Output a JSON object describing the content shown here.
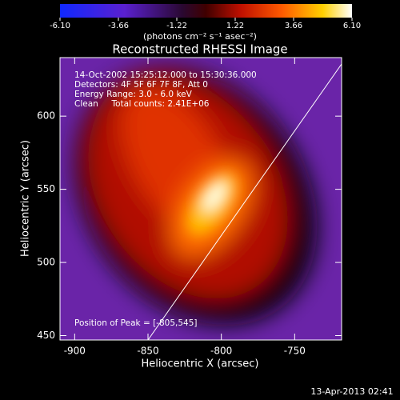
{
  "chart_data": {
    "type": "heatmap",
    "title": "Reconstructed RHESSI Image",
    "x_label": "Heliocentric X (arcsec)",
    "y_label": "Heliocentric Y (arcsec)",
    "xlim": [
      -910,
      -718
    ],
    "ylim": [
      447,
      640
    ],
    "xticks": [
      -900,
      -850,
      -800,
      -750
    ],
    "yticks": [
      500,
      550,
      600,
      450
    ],
    "colorbar": {
      "label": "(photons cm⁻² s⁻¹ asec⁻²)",
      "clim": [
        -6.1,
        6.1
      ],
      "ticks": [
        {
          "value": -6.1,
          "label": "-6.10"
        },
        -3.66,
        -1.22,
        1.22,
        3.66,
        {
          "value": 6.1,
          "label": "6.10"
        }
      ]
    },
    "annotations": [
      "14-Oct-2002 15:25:12.000 to 15:30:36.000",
      "Detectors: 4F 5F 6F 7F 8F, Att 0",
      "Energy Range: 3.0 - 6.0 keV",
      "Clean     Total counts: 2.41E+06"
    ],
    "peak_label": "Position of Peak = [-805,545]",
    "footer": "13-Apr-2013 02:41"
  }
}
